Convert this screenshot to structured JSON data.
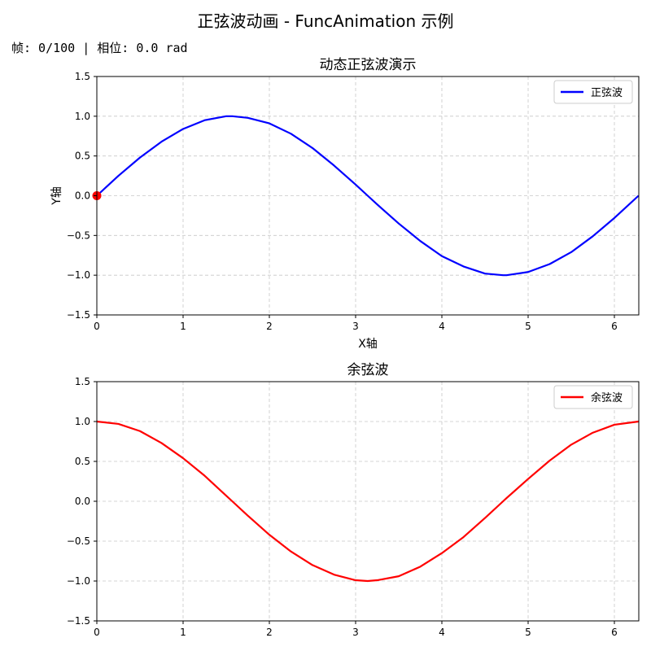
{
  "figure": {
    "suptitle": "正弦波动画 - FuncAnimation 示例",
    "frame_info": "帧: 0/100 | 相位: 0.0 rad"
  },
  "colors": {
    "sine": "#0000ff",
    "cosine": "#ff0000",
    "marker": "#ff0000",
    "grid": "#c8c8c8",
    "axes": "#000000"
  },
  "chart_data": [
    {
      "type": "line",
      "title": "动态正弦波演示",
      "xlabel": "X轴",
      "ylabel": "Y轴",
      "xlim": [
        0,
        6.283
      ],
      "ylim": [
        -1.5,
        1.5
      ],
      "xticks": [
        0,
        1,
        2,
        3,
        4,
        5,
        6
      ],
      "yticks": [
        -1.5,
        -1.0,
        -0.5,
        0.0,
        0.5,
        1.0,
        1.5
      ],
      "grid": true,
      "legend_position": "top-right",
      "series": [
        {
          "name": "正弦波",
          "color": "blue",
          "x": [
            0,
            0.25,
            0.5,
            0.75,
            1.0,
            1.25,
            1.5,
            1.57,
            1.75,
            2.0,
            2.25,
            2.5,
            2.75,
            3.0,
            3.14,
            3.25,
            3.5,
            3.75,
            4.0,
            4.25,
            4.5,
            4.71,
            4.75,
            5.0,
            5.25,
            5.5,
            5.75,
            6.0,
            6.28
          ],
          "y": [
            0,
            0.25,
            0.48,
            0.68,
            0.84,
            0.95,
            1.0,
            1.0,
            0.98,
            0.91,
            0.78,
            0.6,
            0.38,
            0.14,
            0,
            -0.11,
            -0.35,
            -0.57,
            -0.76,
            -0.89,
            -0.98,
            -1.0,
            -1.0,
            -0.96,
            -0.86,
            -0.71,
            -0.51,
            -0.28,
            0
          ]
        }
      ],
      "marker": {
        "x": 0,
        "y": 0
      }
    },
    {
      "type": "line",
      "title": "余弦波",
      "xlim": [
        0,
        6.283
      ],
      "ylim": [
        -1.5,
        1.5
      ],
      "xticks": [
        0,
        1,
        2,
        3,
        4,
        5,
        6
      ],
      "yticks": [
        -1.5,
        -1.0,
        -0.5,
        0.0,
        0.5,
        1.0,
        1.5
      ],
      "grid": true,
      "legend_position": "top-right",
      "series": [
        {
          "name": "余弦波",
          "color": "red",
          "x": [
            0,
            0.25,
            0.5,
            0.75,
            1.0,
            1.25,
            1.5,
            1.57,
            1.75,
            2.0,
            2.25,
            2.5,
            2.75,
            3.0,
            3.14,
            3.25,
            3.5,
            3.75,
            4.0,
            4.25,
            4.5,
            4.71,
            4.75,
            5.0,
            5.25,
            5.5,
            5.75,
            6.0,
            6.28
          ],
          "y": [
            1.0,
            0.97,
            0.88,
            0.73,
            0.54,
            0.32,
            0.07,
            0,
            -0.18,
            -0.42,
            -0.63,
            -0.8,
            -0.92,
            -0.99,
            -1.0,
            -0.99,
            -0.94,
            -0.82,
            -0.65,
            -0.45,
            -0.21,
            0,
            0.04,
            0.28,
            0.51,
            0.71,
            0.86,
            0.96,
            1.0
          ]
        }
      ]
    }
  ]
}
